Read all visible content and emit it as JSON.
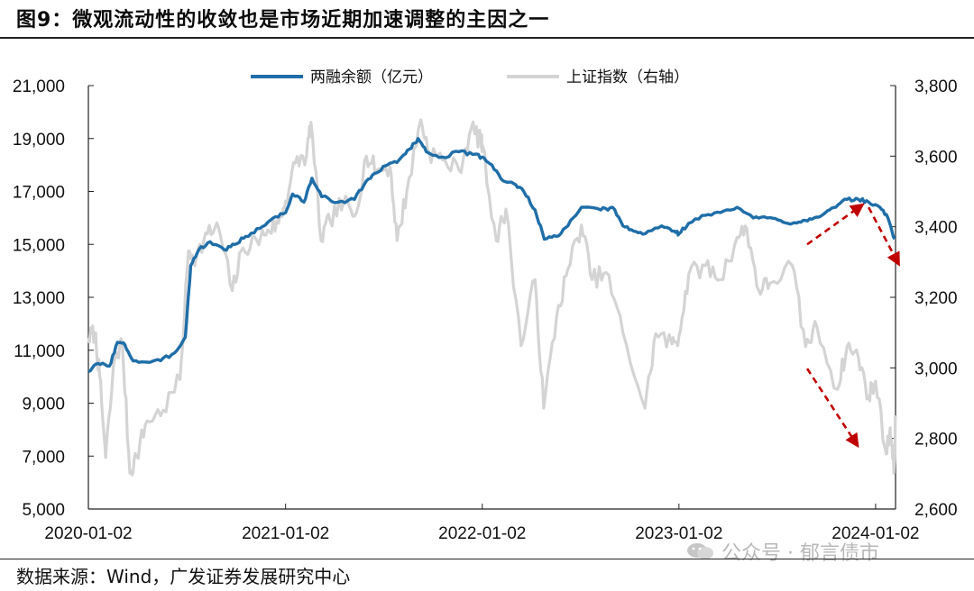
{
  "header": {
    "title": "图9：微观流动性的收敛也是市场近期加速调整的主因之一"
  },
  "footer": {
    "source": "数据来源：Wind，广发证券发展研究中心"
  },
  "watermark": {
    "text": "公众号 · 郁言债市",
    "icon": "wechat-icon"
  },
  "colors": {
    "margin": "#1f6ea8",
    "index": "#d4d4d4",
    "arrow": "#c00000"
  },
  "chart_data": {
    "type": "line",
    "legend": "top-center",
    "grid": false,
    "x_ticks": [
      "2020-01-02",
      "2021-01-02",
      "2022-01-02",
      "2023-01-02",
      "2024-01-02"
    ],
    "xlim": [
      "2020-01-02",
      "2024-02-08"
    ],
    "y_left": {
      "ylim": [
        5000,
        21000
      ],
      "ticks": [
        "5,000",
        "7,000",
        "9,000",
        "11,000",
        "13,000",
        "15,000",
        "17,000",
        "19,000",
        "21,000"
      ]
    },
    "y_right": {
      "ylim": [
        2600,
        3800
      ],
      "ticks": [
        "2,600",
        "2,800",
        "3,000",
        "3,200",
        "3,400",
        "3,600",
        "3,800"
      ]
    },
    "series": [
      {
        "name": "两融余额（亿元）",
        "axis": "left",
        "points": [
          [
            "2020-01-02",
            10200
          ],
          [
            "2020-01-20",
            10500
          ],
          [
            "2020-02-10",
            10400
          ],
          [
            "2020-02-25",
            11300
          ],
          [
            "2020-03-10",
            11200
          ],
          [
            "2020-03-25",
            10600
          ],
          [
            "2020-04-20",
            10550
          ],
          [
            "2020-05-15",
            10600
          ],
          [
            "2020-06-10",
            10900
          ],
          [
            "2020-06-30",
            11500
          ],
          [
            "2020-07-10",
            14200
          ],
          [
            "2020-07-25",
            14800
          ],
          [
            "2020-08-15",
            15100
          ],
          [
            "2020-09-10",
            14800
          ],
          [
            "2020-09-30",
            15000
          ],
          [
            "2020-10-20",
            15300
          ],
          [
            "2020-11-15",
            15600
          ],
          [
            "2020-12-10",
            16000
          ],
          [
            "2021-01-02",
            16200
          ],
          [
            "2021-01-15",
            16900
          ],
          [
            "2021-02-05",
            16600
          ],
          [
            "2021-02-20",
            17500
          ],
          [
            "2021-03-10",
            16800
          ],
          [
            "2021-04-10",
            16600
          ],
          [
            "2021-05-10",
            16700
          ],
          [
            "2021-06-01",
            17400
          ],
          [
            "2021-06-20",
            17700
          ],
          [
            "2021-07-10",
            18000
          ],
          [
            "2021-08-01",
            18200
          ],
          [
            "2021-08-20",
            18600
          ],
          [
            "2021-09-05",
            19000
          ],
          [
            "2021-09-20",
            18500
          ],
          [
            "2021-10-20",
            18300
          ],
          [
            "2021-11-20",
            18500
          ],
          [
            "2021-12-15",
            18400
          ],
          [
            "2022-01-02",
            18300
          ],
          [
            "2022-01-20",
            18000
          ],
          [
            "2022-02-10",
            17400
          ],
          [
            "2022-03-01",
            17300
          ],
          [
            "2022-03-20",
            17000
          ],
          [
            "2022-04-10",
            16300
          ],
          [
            "2022-04-27",
            15200
          ],
          [
            "2022-05-20",
            15300
          ],
          [
            "2022-06-10",
            15700
          ],
          [
            "2022-07-05",
            16400
          ],
          [
            "2022-08-10",
            16300
          ],
          [
            "2022-09-01",
            16400
          ],
          [
            "2022-09-20",
            15700
          ],
          [
            "2022-10-10",
            15500
          ],
          [
            "2022-10-31",
            15400
          ],
          [
            "2022-12-01",
            15700
          ],
          [
            "2022-12-25",
            15500
          ],
          [
            "2023-01-02",
            15400
          ],
          [
            "2023-01-20",
            15800
          ],
          [
            "2023-02-20",
            16100
          ],
          [
            "2023-03-20",
            16200
          ],
          [
            "2023-04-20",
            16400
          ],
          [
            "2023-05-20",
            16000
          ],
          [
            "2023-06-15",
            16000
          ],
          [
            "2023-07-10",
            15900
          ],
          [
            "2023-08-01",
            15800
          ],
          [
            "2023-08-20",
            15900
          ],
          [
            "2023-09-10",
            16000
          ],
          [
            "2023-10-01",
            16200
          ],
          [
            "2023-10-20",
            16400
          ],
          [
            "2023-11-10",
            16700
          ],
          [
            "2023-12-01",
            16700
          ],
          [
            "2023-12-20",
            16600
          ],
          [
            "2024-01-10",
            16400
          ],
          [
            "2024-01-25",
            16000
          ],
          [
            "2024-02-06",
            15200
          ]
        ]
      },
      {
        "name": "上证指数（右轴）",
        "axis": "right",
        "points": [
          [
            "2020-01-02",
            3085
          ],
          [
            "2020-01-14",
            3100
          ],
          [
            "2020-01-23",
            2976
          ],
          [
            "2020-02-03",
            2746
          ],
          [
            "2020-02-20",
            3030
          ],
          [
            "2020-03-05",
            3071
          ],
          [
            "2020-03-19",
            2702
          ],
          [
            "2020-03-31",
            2750
          ],
          [
            "2020-04-20",
            2850
          ],
          [
            "2020-05-20",
            2880
          ],
          [
            "2020-06-20",
            2967
          ],
          [
            "2020-07-06",
            3332
          ],
          [
            "2020-07-20",
            3314
          ],
          [
            "2020-08-10",
            3380
          ],
          [
            "2020-08-31",
            3395
          ],
          [
            "2020-09-25",
            3219
          ],
          [
            "2020-10-15",
            3340
          ],
          [
            "2020-11-10",
            3360
          ],
          [
            "2020-11-30",
            3391
          ],
          [
            "2020-12-20",
            3410
          ],
          [
            "2021-01-02",
            3473
          ],
          [
            "2021-01-20",
            3580
          ],
          [
            "2021-02-10",
            3603
          ],
          [
            "2021-02-18",
            3696
          ],
          [
            "2021-03-09",
            3360
          ],
          [
            "2021-03-25",
            3420
          ],
          [
            "2021-04-20",
            3470
          ],
          [
            "2021-05-10",
            3430
          ],
          [
            "2021-06-01",
            3600
          ],
          [
            "2021-06-20",
            3560
          ],
          [
            "2021-07-15",
            3570
          ],
          [
            "2021-07-28",
            3361
          ],
          [
            "2021-08-15",
            3500
          ],
          [
            "2021-09-10",
            3703
          ],
          [
            "2021-09-25",
            3613
          ],
          [
            "2021-10-20",
            3590
          ],
          [
            "2021-11-20",
            3560
          ],
          [
            "2021-12-13",
            3681
          ],
          [
            "2021-12-31",
            3640
          ],
          [
            "2022-01-02",
            3632
          ],
          [
            "2022-01-28",
            3361
          ],
          [
            "2022-02-15",
            3450
          ],
          [
            "2022-03-15",
            3063
          ],
          [
            "2022-04-10",
            3250
          ],
          [
            "2022-04-26",
            2886
          ],
          [
            "2022-05-20",
            3146
          ],
          [
            "2022-06-10",
            3280
          ],
          [
            "2022-07-05",
            3405
          ],
          [
            "2022-07-25",
            3250
          ],
          [
            "2022-08-20",
            3270
          ],
          [
            "2022-09-20",
            3100
          ],
          [
            "2022-10-31",
            2886
          ],
          [
            "2022-11-20",
            3097
          ],
          [
            "2022-12-20",
            3068
          ],
          [
            "2023-01-02",
            3089
          ],
          [
            "2023-01-20",
            3264
          ],
          [
            "2023-02-20",
            3290
          ],
          [
            "2023-03-20",
            3250
          ],
          [
            "2023-04-20",
            3370
          ],
          [
            "2023-05-08",
            3395
          ],
          [
            "2023-05-30",
            3220
          ],
          [
            "2023-06-20",
            3240
          ],
          [
            "2023-07-31",
            3291
          ],
          [
            "2023-08-25",
            3060
          ],
          [
            "2023-09-15",
            3117
          ],
          [
            "2023-10-23",
            2939
          ],
          [
            "2023-11-10",
            3060
          ],
          [
            "2023-12-01",
            3030
          ],
          [
            "2023-12-20",
            2920
          ],
          [
            "2024-01-02",
            2962
          ],
          [
            "2024-01-22",
            2756
          ],
          [
            "2024-01-29",
            2830
          ],
          [
            "2024-02-05",
            2702
          ],
          [
            "2024-02-08",
            2865
          ]
        ]
      }
    ]
  }
}
